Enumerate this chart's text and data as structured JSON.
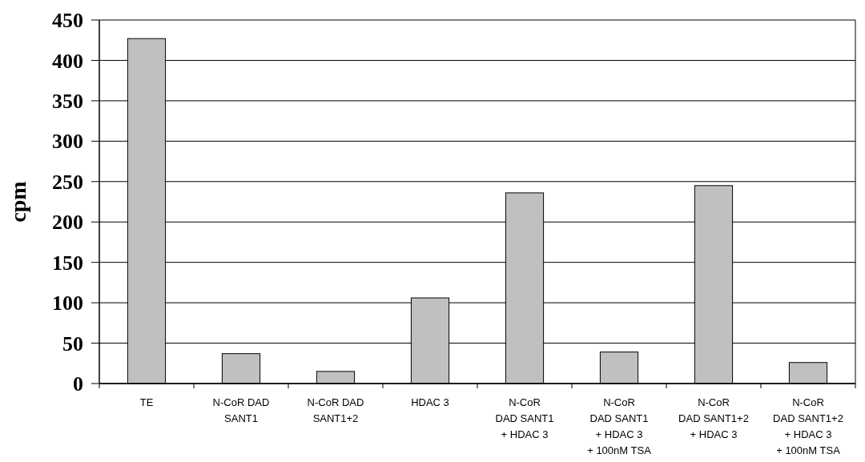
{
  "chart_data": {
    "type": "bar",
    "ylabel": "cpm",
    "categories": [
      "TE",
      "N-CoR DAD\nSANT1",
      "N-CoR DAD\nSANT1+2",
      "HDAC 3",
      "N-CoR\nDAD SANT1\n+ HDAC 3",
      "N-CoR\nDAD SANT1\n+ HDAC 3\n+ 100nM TSA",
      "N-CoR\nDAD SANT1+2\n+ HDAC 3",
      "N-CoR\nDAD SANT1+2\n+ HDAC 3\n+ 100nM TSA"
    ],
    "values": [
      427,
      37,
      15,
      106,
      236,
      39,
      245,
      26
    ],
    "color": "#c0c0c0",
    "ylim": [
      0,
      450
    ],
    "yticks": [
      0,
      50,
      100,
      150,
      200,
      250,
      300,
      350,
      400,
      450
    ],
    "grid": "y"
  }
}
